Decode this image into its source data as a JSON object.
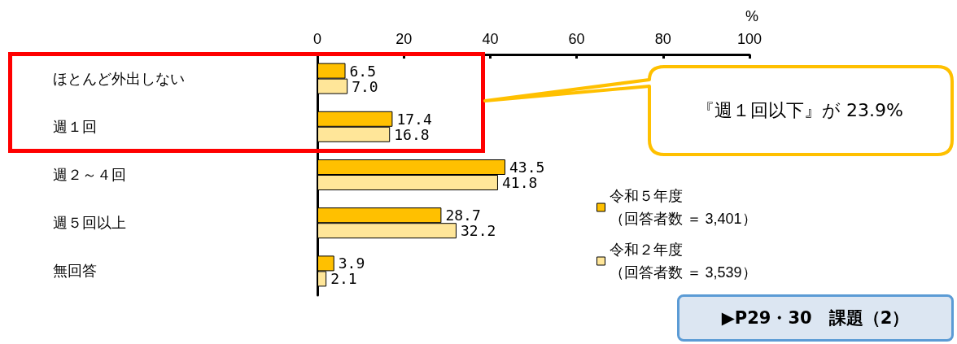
{
  "chart_data": {
    "type": "bar",
    "orientation": "horizontal",
    "xlabel": "%",
    "categories": [
      "ほとんど外出しない",
      "週１回",
      "週２～４回",
      "週５回以上",
      "無回答"
    ],
    "series": [
      {
        "name": "令和５年度（回答者数 ＝ 3,401）",
        "color": "#ffc000",
        "values": [
          6.5,
          17.4,
          43.5,
          28.7,
          3.9
        ],
        "value_labels": [
          "6.5",
          "17.4",
          "43.5",
          "28.7",
          "3.9"
        ]
      },
      {
        "name": "令和２年度（回答者数 ＝ 3,539）",
        "color": "#ffe699",
        "values": [
          7.0,
          16.8,
          41.8,
          32.2,
          2.1
        ],
        "value_labels": [
          "7.0",
          "16.8",
          "41.8",
          "32.2",
          "2.1"
        ]
      }
    ],
    "x2lim": [
      0,
      100
    ],
    "x2ticks": [
      0,
      20,
      40,
      60,
      80,
      100
    ],
    "grid": false,
    "legend": "right",
    "annotations": [
      "『週１回以下』が 23.9%",
      "▶P29・30　課題（2）"
    ]
  }
}
